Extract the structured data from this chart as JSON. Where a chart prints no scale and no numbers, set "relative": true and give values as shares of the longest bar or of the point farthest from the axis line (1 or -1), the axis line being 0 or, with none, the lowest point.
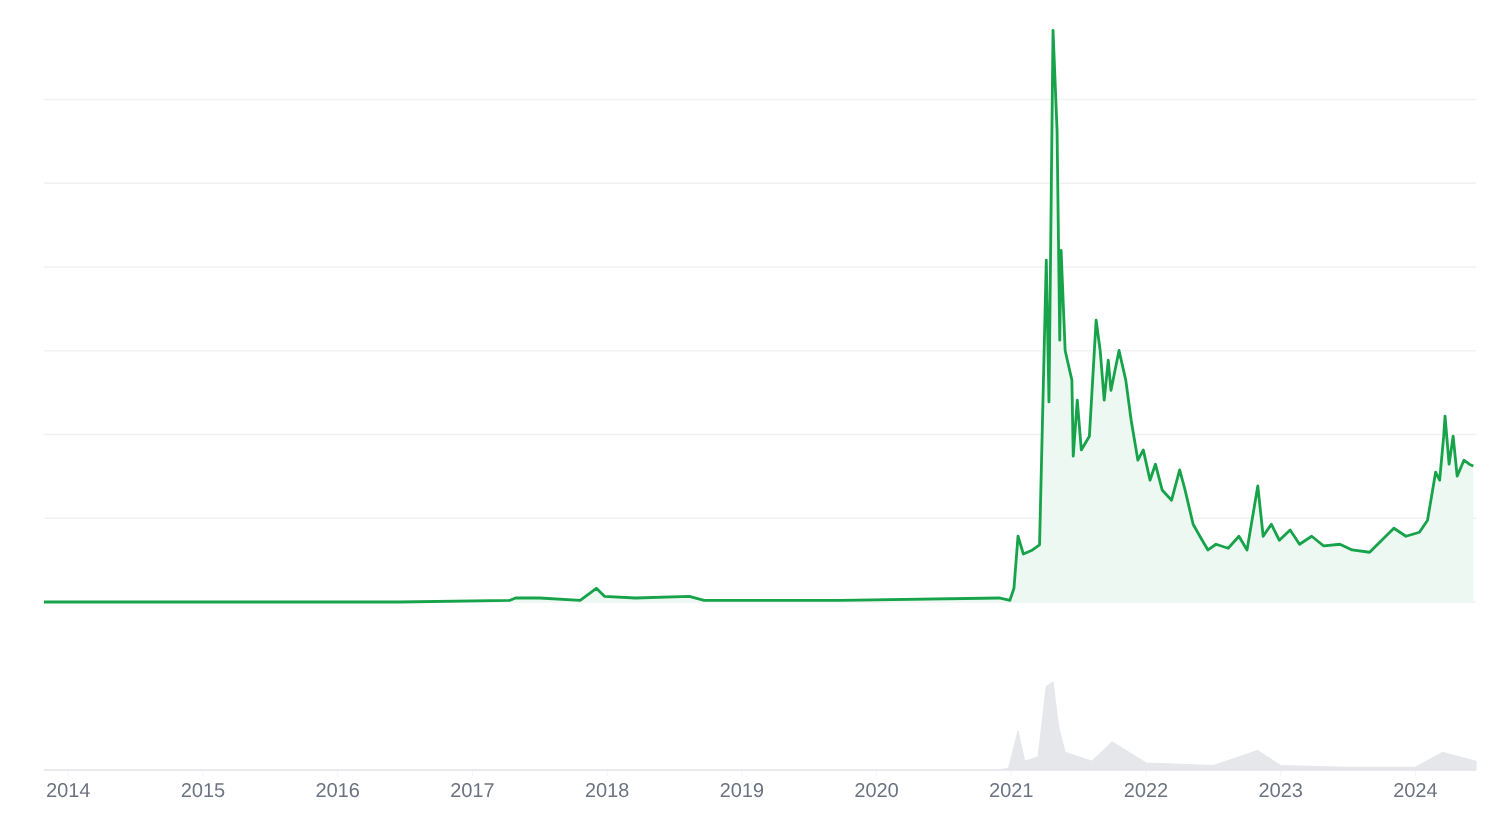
{
  "chart_data": [
    {
      "type": "area",
      "relative": true,
      "color": "#16a34a",
      "grid": "y",
      "tick_labels": false,
      "xlim": [
        2013.82,
        2024.45
      ],
      "x": [
        2013.82,
        2014.98,
        2016.46,
        2017.28,
        2017.32,
        2017.5,
        2017.8,
        2017.92,
        2017.98,
        2018.21,
        2018.61,
        2018.72,
        2019.73,
        2020.91,
        2020.99,
        2021.02,
        2021.05,
        2021.09,
        2021.15,
        2021.21,
        2021.26,
        2021.28,
        2021.31,
        2021.34,
        2021.36,
        2021.37,
        2021.4,
        2021.45,
        2021.46,
        2021.49,
        2021.52,
        2021.58,
        2021.63,
        2021.66,
        2021.69,
        2021.72,
        2021.74,
        2021.8,
        2021.85,
        2021.89,
        2021.94,
        2021.98,
        2022.03,
        2022.07,
        2022.12,
        2022.19,
        2022.25,
        2022.29,
        2022.35,
        2022.4,
        2022.46,
        2022.52,
        2022.61,
        2022.69,
        2022.75,
        2022.83,
        2022.87,
        2022.93,
        2022.99,
        2023.07,
        2023.14,
        2023.23,
        2023.32,
        2023.44,
        2023.53,
        2023.66,
        2023.78,
        2023.84,
        2023.93,
        2024.03,
        2024.09,
        2024.15,
        2024.18,
        2024.21,
        2024.22,
        2024.25,
        2024.28,
        2024.31,
        2024.36,
        2024.4,
        2024.43
      ],
      "values": [
        0.0,
        0.0,
        0.0,
        0.003,
        0.007,
        0.007,
        0.003,
        0.024,
        0.01,
        0.007,
        0.01,
        0.003,
        0.003,
        0.007,
        0.003,
        0.024,
        0.115,
        0.084,
        0.09,
        0.1,
        0.598,
        0.35,
        1.0,
        0.825,
        0.458,
        0.615,
        0.44,
        0.388,
        0.255,
        0.353,
        0.266,
        0.29,
        0.493,
        0.44,
        0.353,
        0.423,
        0.37,
        0.44,
        0.388,
        0.318,
        0.248,
        0.266,
        0.213,
        0.241,
        0.196,
        0.178,
        0.231,
        0.196,
        0.136,
        0.115,
        0.091,
        0.101,
        0.094,
        0.115,
        0.091,
        0.203,
        0.115,
        0.136,
        0.108,
        0.126,
        0.101,
        0.115,
        0.098,
        0.101,
        0.091,
        0.087,
        0.115,
        0.129,
        0.115,
        0.122,
        0.143,
        0.227,
        0.213,
        0.29,
        0.325,
        0.241,
        0.29,
        0.22,
        0.248,
        0.241,
        0.238
      ]
    },
    {
      "type": "area",
      "relative": true,
      "color": "#e5e7eb",
      "tick_labels": "x",
      "xlim": [
        2013.82,
        2024.45
      ],
      "xticks": [
        2014,
        2015,
        2016,
        2017,
        2018,
        2019,
        2020,
        2021,
        2022,
        2023,
        2024
      ],
      "x": [
        2013.82,
        2020.9,
        2020.98,
        2021.05,
        2021.1,
        2021.2,
        2021.26,
        2021.31,
        2021.35,
        2021.4,
        2021.6,
        2021.75,
        2022.0,
        2022.5,
        2022.83,
        2023.0,
        2023.5,
        2024.0,
        2024.2,
        2024.45
      ],
      "values": [
        0.0,
        0.0,
        0.02,
        0.44,
        0.1,
        0.15,
        0.95,
        1.0,
        0.5,
        0.2,
        0.1,
        0.32,
        0.08,
        0.05,
        0.22,
        0.05,
        0.03,
        0.03,
        0.2,
        0.1
      ]
    }
  ]
}
